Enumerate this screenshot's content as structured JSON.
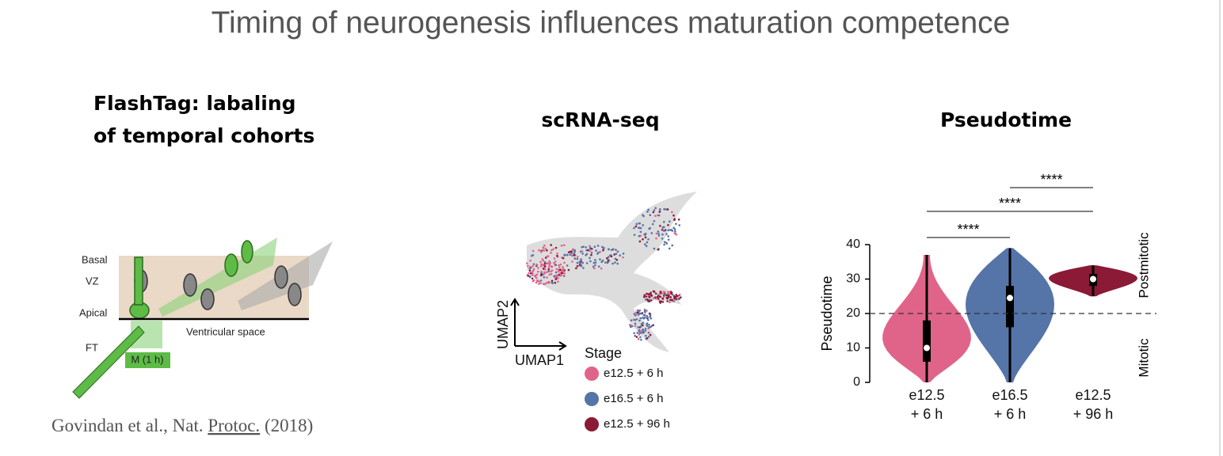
{
  "title": "Timing of neurogenesis influences maturation competence",
  "flashtag": {
    "heading": [
      "FlashTag:  labaling",
      "of temporal cohorts"
    ],
    "diagram": {
      "basal": "Basal",
      "vz": "VZ",
      "apical": "Apical",
      "space": "Ventricular space",
      "ft": "FT",
      "pulse": "M (1 h)"
    },
    "citation": {
      "authors": "Govindan et al., Nat.",
      "journal": "Protoc.",
      "year": "(2018)"
    }
  },
  "scrna": {
    "heading": "scRNA-seq",
    "x_axis": "UMAP1",
    "y_axis": "UMAP2",
    "legend_title": "Stage",
    "legend": [
      {
        "name": "e12.5 + 6 h",
        "color": "#e0648a"
      },
      {
        "name": "e16.5 + 6 h",
        "color": "#5574a8"
      },
      {
        "name": "e12.5 + 96 h",
        "color": "#8b1a36"
      }
    ]
  },
  "pseudotime": {
    "heading": "Pseudotime",
    "chart_data": {
      "type": "violin",
      "ylabel": "Pseudotime",
      "categories": [
        [
          "e12.5",
          "+ 6 h"
        ],
        [
          "e16.5",
          "+ 6 h"
        ],
        [
          "e12.5",
          "+ 96 h"
        ]
      ],
      "colors": [
        "#e0648a",
        "#5574a8",
        "#8b1a36"
      ],
      "min": [
        0,
        0,
        25
      ],
      "q1": [
        6,
        16,
        28
      ],
      "median": [
        10,
        24.5,
        30
      ],
      "q3": [
        18,
        28,
        31.5
      ],
      "max": [
        37,
        39,
        34
      ],
      "ylim": [
        0,
        40
      ],
      "yticks": [
        0,
        10,
        20,
        30,
        40
      ],
      "threshold": 20,
      "upper_label": "Postmitotic",
      "lower_label": "Mitotic",
      "significance": [
        "****",
        "****",
        "****"
      ]
    }
  }
}
